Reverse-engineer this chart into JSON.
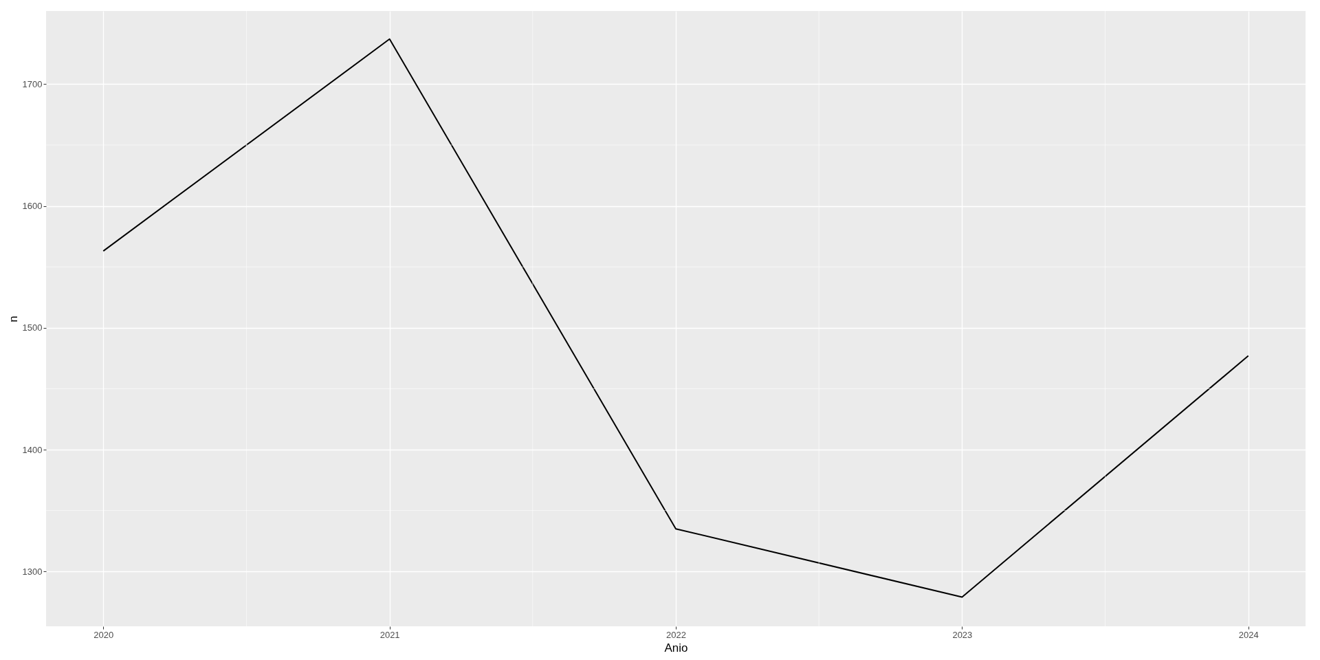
{
  "chart_data": {
    "type": "line",
    "xlabel": "Anio",
    "ylabel": "n",
    "x": [
      2020,
      2021,
      2022,
      2023,
      2024
    ],
    "series": [
      {
        "color": "#000000",
        "values": [
          1563,
          1737,
          1335,
          1279,
          1477
        ]
      }
    ],
    "xlim": [
      2019.8,
      2024.2
    ],
    "xticks": [
      2020,
      2021,
      2022,
      2023,
      2024
    ],
    "ylim": [
      1255,
      1760
    ],
    "yticks": [
      1300,
      1400,
      1500,
      1600,
      1700
    ],
    "grid": true,
    "line_style": "solid"
  }
}
